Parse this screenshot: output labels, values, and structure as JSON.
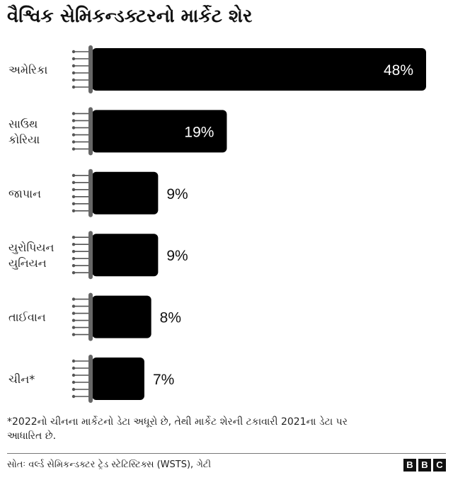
{
  "title": "વૈશ્વિક સેમિકન્ડક્ટરનો માર્કેટ શેર",
  "chart_data": {
    "type": "bar",
    "orientation": "horizontal",
    "categories": [
      [
        "અમેરિકા"
      ],
      [
        "સાઉથ",
        "કોરિયા"
      ],
      [
        "જાપાન"
      ],
      [
        "યુરોપિયન",
        "યુનિયન"
      ],
      [
        "તાઈવાન"
      ],
      [
        "ચીન*"
      ]
    ],
    "values": [
      48,
      19,
      9,
      9,
      8,
      7
    ],
    "value_labels": [
      "48%",
      "19%",
      "9%",
      "9%",
      "8%",
      "7%"
    ],
    "bar_color": "#000000",
    "xlim": [
      0,
      48
    ],
    "grid": false
  },
  "footnote": "*2022નો ચીનના માર્કેટનો ડેટા અધૂરો છે, તેથી માર્કેટ શેરની ટકાવારી 2021ના ડેટા પર આધારિત છે.",
  "source": "સોતઃ વર્લ્ડ સેમિકન્ડક્ટર ટ્રેડ સ્ટેટિસ્ટિક્સ (WSTS), ગેટી",
  "logo": [
    "B",
    "B",
    "C"
  ]
}
